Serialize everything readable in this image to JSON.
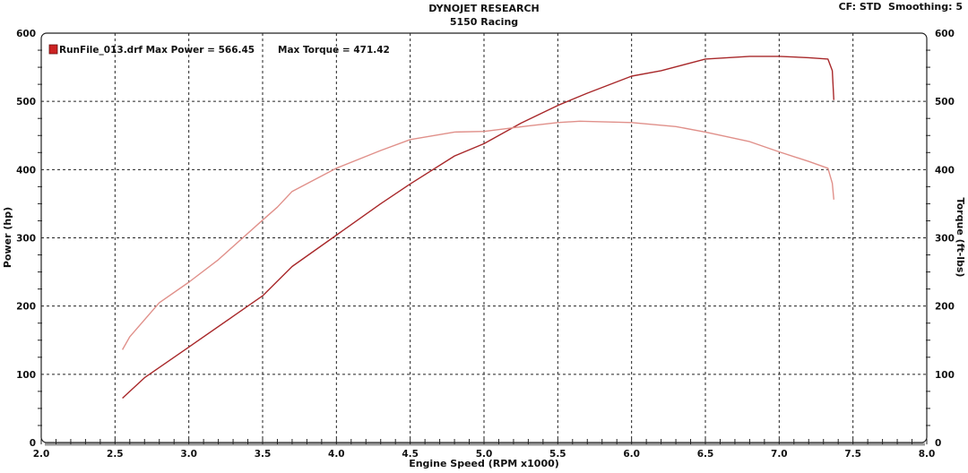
{
  "header": {
    "title": "DYNOJET RESEARCH",
    "subtitle": "5150 Racing",
    "settings": "CF: STD  Smoothing: 5"
  },
  "chart_data": {
    "type": "line",
    "title": "DYNOJET RESEARCH",
    "subtitle": "5150 Racing",
    "xlabel": "Engine Speed (RPM x1000)",
    "ylabel": "Power (hp)",
    "y2label": "Torque (ft-lbs)",
    "xlim": [
      2.0,
      8.0
    ],
    "ylim": [
      0,
      600
    ],
    "y2lim": [
      0,
      600
    ],
    "xticks": [
      "2.0",
      "2.5",
      "3.0",
      "3.5",
      "4.0",
      "4.5",
      "5.0",
      "5.5",
      "6.0",
      "6.5",
      "7.0",
      "7.5",
      "8.0"
    ],
    "yticks": [
      "0",
      "100",
      "200",
      "300",
      "400",
      "500",
      "600"
    ],
    "grid": true,
    "legend": {
      "position": "top-left",
      "text": "RunFile_013.drf Max Power = 566.45",
      "torque_text": "Max Torque = 471.42",
      "color": "#cc2222"
    },
    "series": [
      {
        "name": "Power",
        "color": "#a8282a",
        "x": [
          2.55,
          2.7,
          3.0,
          3.3,
          3.5,
          3.7,
          4.0,
          4.3,
          4.5,
          4.8,
          5.0,
          5.25,
          5.5,
          5.7,
          6.0,
          6.2,
          6.5,
          6.8,
          7.0,
          7.2,
          7.33,
          7.36,
          7.37
        ],
        "y": [
          65,
          95,
          140,
          185,
          215,
          258,
          304,
          350,
          379,
          420,
          438,
          468,
          494,
          512,
          537,
          545,
          562,
          566,
          566,
          564,
          562,
          545,
          502
        ]
      },
      {
        "name": "Torque",
        "color": "#e0908a",
        "x": [
          2.55,
          2.6,
          2.8,
          3.0,
          3.2,
          3.5,
          3.6,
          3.7,
          4.0,
          4.3,
          4.5,
          4.8,
          5.0,
          5.3,
          5.5,
          5.65,
          6.0,
          6.3,
          6.5,
          6.8,
          7.0,
          7.2,
          7.33,
          7.36,
          7.37
        ],
        "y": [
          136,
          155,
          205,
          235,
          268,
          326,
          345,
          368,
          402,
          428,
          444,
          455,
          456,
          464,
          469,
          471,
          469,
          463,
          455,
          441,
          426,
          412,
          402,
          380,
          356
        ]
      }
    ]
  }
}
